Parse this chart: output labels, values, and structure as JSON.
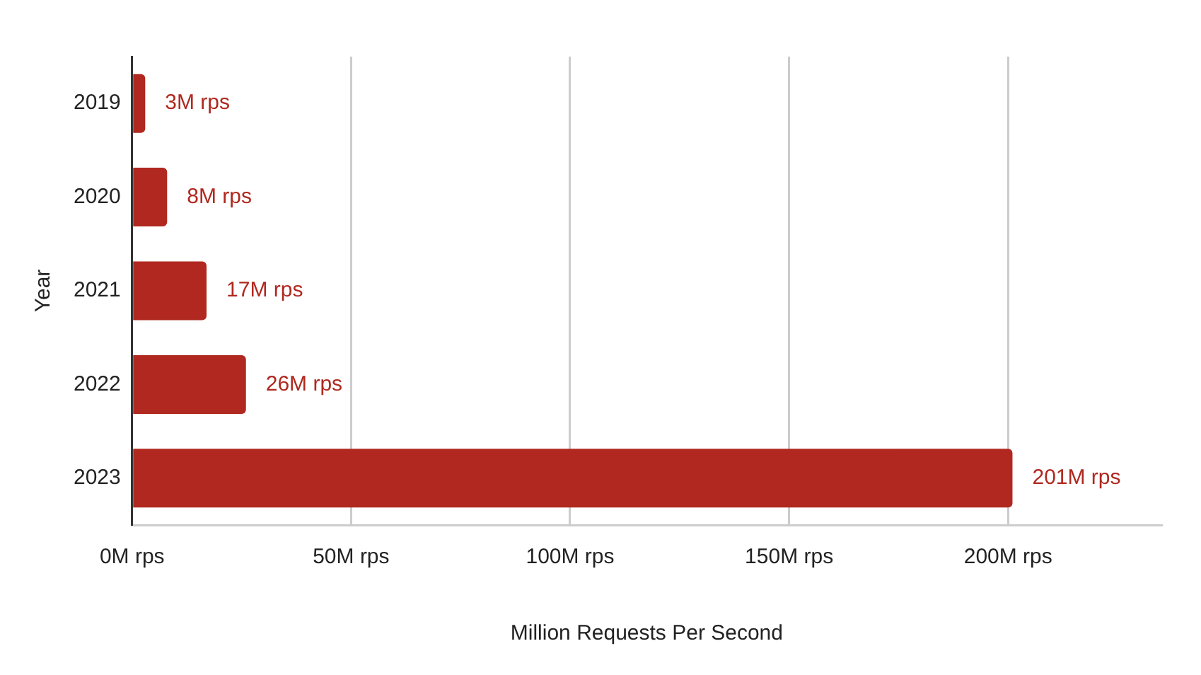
{
  "chart_data": {
    "type": "bar",
    "orientation": "horizontal",
    "xlabel": "Million Requests Per Second",
    "ylabel": "Year",
    "categories": [
      "2019",
      "2020",
      "2021",
      "2022",
      "2023"
    ],
    "values": [
      3,
      8,
      17,
      26,
      201
    ],
    "value_labels": [
      "3M rps",
      "8M rps",
      "17M rps",
      "26M rps",
      "201M rps"
    ],
    "color": "#b0281f",
    "xlim": [
      0,
      235
    ],
    "xticks": [
      {
        "value": 0,
        "label": "0M rps"
      },
      {
        "value": 50,
        "label": "50M rps"
      },
      {
        "value": 100,
        "label": "100M rps"
      },
      {
        "value": 150,
        "label": "150M rps"
      },
      {
        "value": 200,
        "label": "200M rps"
      }
    ],
    "grid": "x",
    "legend": false
  }
}
